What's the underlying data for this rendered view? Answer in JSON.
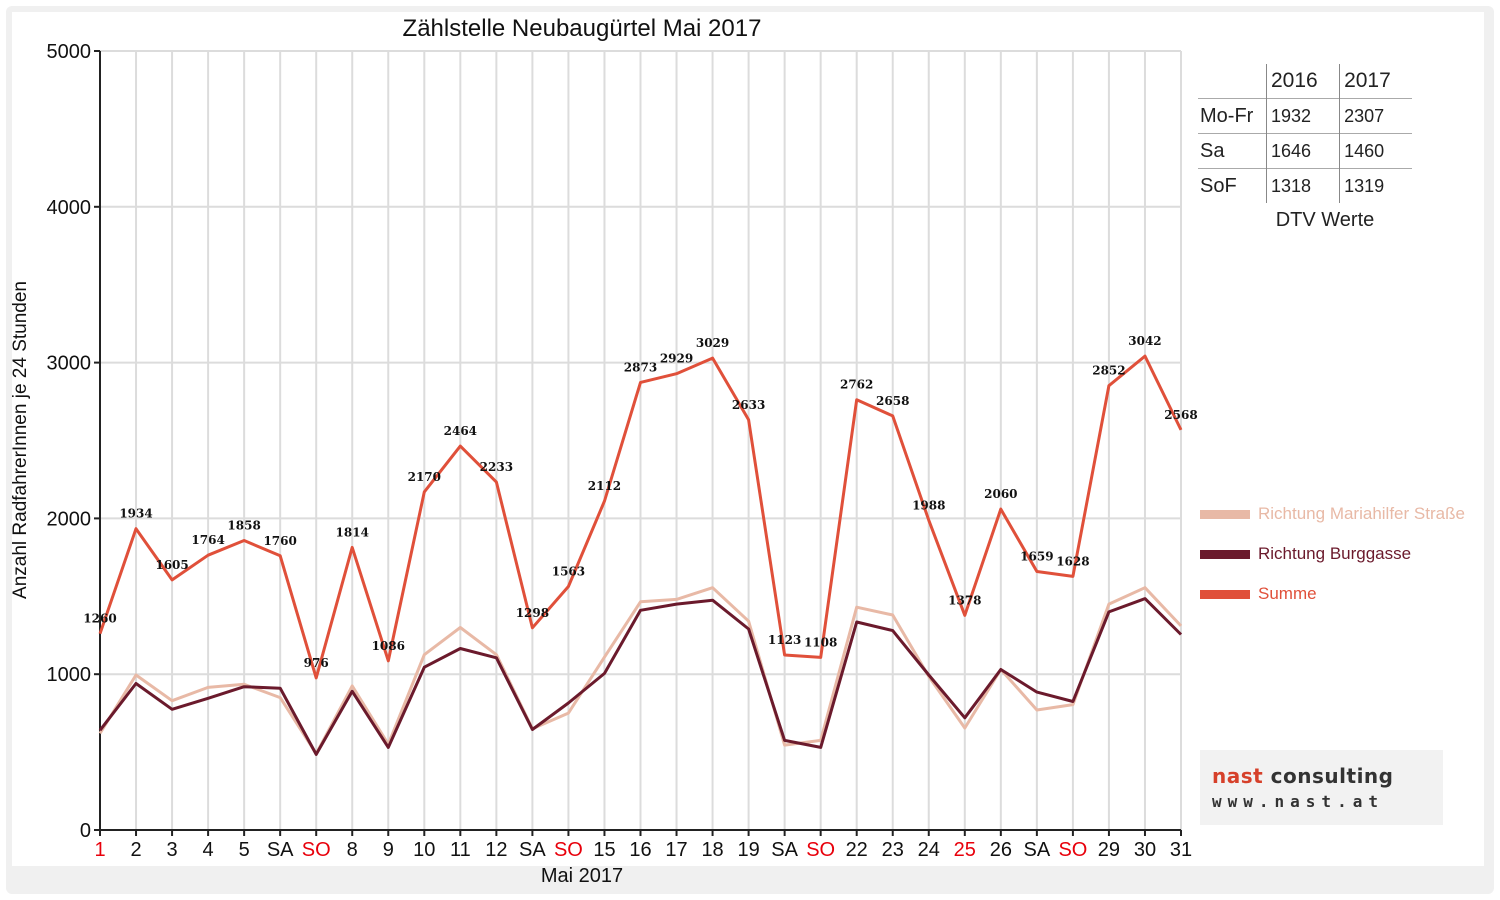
{
  "chart_data": {
    "type": "line",
    "title": "Zählstelle Neubaugürtel Mai 2017",
    "xlabel": "Mai 2017",
    "ylabel": "Anzahl RadfahrerInnen je 24 Stunden",
    "ylim": [
      0,
      5000
    ],
    "yticks": [
      0,
      1000,
      2000,
      3000,
      4000,
      5000
    ],
    "grid": "vertical and horizontal",
    "legend_position": "right",
    "categories": [
      "1",
      "2",
      "3",
      "4",
      "5",
      "SA",
      "SO",
      "8",
      "9",
      "10",
      "11",
      "12",
      "SA",
      "SO",
      "15",
      "16",
      "17",
      "18",
      "19",
      "SA",
      "SO",
      "22",
      "23",
      "24",
      "25",
      "26",
      "SA",
      "SO",
      "29",
      "30",
      "31"
    ],
    "category_colors": [
      "#e8000b",
      "#111111",
      "#111111",
      "#111111",
      "#111111",
      "#111111",
      "#e8000b",
      "#111111",
      "#111111",
      "#111111",
      "#111111",
      "#111111",
      "#111111",
      "#e8000b",
      "#111111",
      "#111111",
      "#111111",
      "#111111",
      "#111111",
      "#111111",
      "#e8000b",
      "#111111",
      "#111111",
      "#111111",
      "#e8000b",
      "#111111",
      "#111111",
      "#e8000b",
      "#111111",
      "#111111",
      "#111111"
    ],
    "series": [
      {
        "name": "Richtung Mariahilfer Straße",
        "color": "#e8b9a6",
        "values": [
          620,
          995,
          830,
          915,
          935,
          850,
          490,
          925,
          550,
          1125,
          1300,
          1125,
          650,
          750,
          1110,
          1465,
          1480,
          1555,
          1340,
          545,
          575,
          1430,
          1380,
          985,
          655,
          1030,
          770,
          805,
          1450,
          1555,
          1310
        ]
      },
      {
        "name": "Richtung Burggasse",
        "color": "#6b1a2c",
        "values": [
          640,
          940,
          775,
          845,
          920,
          910,
          485,
          890,
          530,
          1045,
          1165,
          1105,
          645,
          815,
          1005,
          1410,
          1450,
          1475,
          1290,
          575,
          530,
          1335,
          1280,
          995,
          720,
          1030,
          885,
          825,
          1400,
          1485,
          1255
        ]
      },
      {
        "name": "Summe",
        "color": "#e0503a",
        "values": [
          1260,
          1934,
          1605,
          1764,
          1858,
          1760,
          976,
          1814,
          1086,
          2170,
          2464,
          2233,
          1298,
          1563,
          2112,
          2873,
          2929,
          3029,
          2633,
          1123,
          1108,
          2762,
          2658,
          1988,
          1378,
          2060,
          1659,
          1628,
          2852,
          3042,
          2568
        ],
        "data_labels": [
          "1260",
          "1934",
          "1605",
          "1764",
          "1858",
          "1760",
          "976",
          "1814",
          "1086",
          "2170",
          "2464",
          "2233",
          "1298",
          "1563",
          "2112",
          "2873",
          "2929",
          "3029",
          "2633",
          "1123",
          "1108",
          "2762",
          "2658",
          "1988",
          "1378",
          "2060",
          "1659",
          "1628",
          "2852",
          "3042",
          "2568"
        ]
      }
    ]
  },
  "dtv_table": {
    "caption": "DTV Werte",
    "header": [
      "",
      "2016",
      "2017"
    ],
    "rows": [
      {
        "label": "Mo-Fr",
        "v2016": "1932",
        "v2017": "2307"
      },
      {
        "label": "Sa",
        "v2016": "1646",
        "v2017": "1460"
      },
      {
        "label": "SoF",
        "v2016": "1318",
        "v2017": "1319"
      }
    ]
  },
  "logo": {
    "word1": "nast",
    "word2": "consulting",
    "url": "www.nast.at"
  }
}
